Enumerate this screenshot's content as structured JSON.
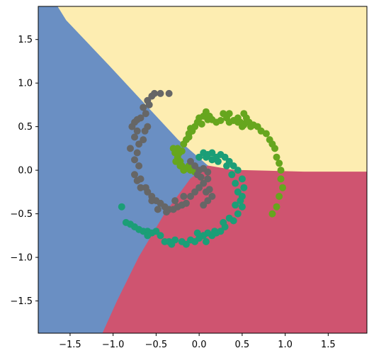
{
  "chart_data": {
    "type": "scatter",
    "title": "",
    "xlabel": "",
    "ylabel": "",
    "xlim": [
      -1.87,
      1.95
    ],
    "ylim": [
      -1.87,
      1.88
    ],
    "grid": false,
    "legend": "none",
    "x_ticks": [
      -1.5,
      -1.0,
      -0.5,
      0.0,
      0.5,
      1.0,
      1.5
    ],
    "y_ticks": [
      -1.5,
      -1.0,
      -0.5,
      0.0,
      0.5,
      1.0,
      1.5
    ],
    "x_tick_labels": [
      "−1.5",
      "−1.0",
      "−0.5",
      "0.0",
      "0.5",
      "1.0",
      "1.5"
    ],
    "y_tick_labels": [
      "−1.5",
      "−1.0",
      "−0.5",
      "0.0",
      "0.5",
      "1.0",
      "1.5"
    ],
    "regions": [
      {
        "class": "yellow",
        "color": "#FDEDB1",
        "polygon": [
          [
            -1.65,
            1.88
          ],
          [
            1.95,
            1.88
          ],
          [
            1.95,
            -0.02
          ],
          [
            1.22,
            -0.02
          ],
          [
            0.4,
            0.0
          ],
          [
            0.1,
            0.05
          ],
          [
            -0.25,
            0.35
          ],
          [
            -1.05,
            1.2
          ],
          [
            -1.55,
            1.72
          ]
        ]
      },
      {
        "class": "blue",
        "color": "#6A8FC3",
        "polygon": [
          [
            -1.87,
            1.88
          ],
          [
            -1.65,
            1.88
          ],
          [
            -1.55,
            1.72
          ],
          [
            -1.05,
            1.2
          ],
          [
            -0.25,
            0.35
          ],
          [
            0.1,
            0.05
          ],
          [
            -0.1,
            -0.1
          ],
          [
            -0.4,
            -0.5
          ],
          [
            -0.7,
            -1.0
          ],
          [
            -0.95,
            -1.5
          ],
          [
            -1.12,
            -1.87
          ],
          [
            -1.87,
            -1.87
          ]
        ]
      },
      {
        "class": "red",
        "color": "#CF5470",
        "polygon": [
          [
            0.1,
            0.05
          ],
          [
            0.4,
            0.0
          ],
          [
            1.22,
            -0.02
          ],
          [
            1.95,
            -0.02
          ],
          [
            1.95,
            -1.87
          ],
          [
            -1.12,
            -1.87
          ],
          [
            -0.95,
            -1.5
          ],
          [
            -0.7,
            -1.0
          ],
          [
            -0.4,
            -0.5
          ],
          [
            -0.1,
            -0.1
          ]
        ]
      }
    ],
    "series": [
      {
        "color": "#66A61E",
        "points": [
          [
            -0.3,
            0.25
          ],
          [
            -0.28,
            0.2
          ],
          [
            -0.25,
            0.15
          ],
          [
            -0.22,
            0.1
          ],
          [
            -0.2,
            0.05
          ],
          [
            -0.15,
            0.02
          ],
          [
            -0.1,
            0.0
          ],
          [
            -0.05,
            -0.02
          ],
          [
            -0.27,
            0.1
          ],
          [
            -0.23,
            0.2
          ],
          [
            -0.18,
            0.3
          ],
          [
            -0.15,
            0.35
          ],
          [
            -0.12,
            0.42
          ],
          [
            -0.1,
            0.48
          ],
          [
            -0.05,
            0.5
          ],
          [
            -0.02,
            0.55
          ],
          [
            0.0,
            0.6
          ],
          [
            0.05,
            0.62
          ],
          [
            0.08,
            0.67
          ],
          [
            0.12,
            0.62
          ],
          [
            0.15,
            0.58
          ],
          [
            0.2,
            0.55
          ],
          [
            0.25,
            0.57
          ],
          [
            0.28,
            0.65
          ],
          [
            0.32,
            0.6
          ],
          [
            0.35,
            0.55
          ],
          [
            0.4,
            0.57
          ],
          [
            0.45,
            0.6
          ],
          [
            0.48,
            0.55
          ],
          [
            0.5,
            0.5
          ],
          [
            0.52,
            0.65
          ],
          [
            0.55,
            0.6
          ],
          [
            0.58,
            0.55
          ],
          [
            0.6,
            0.5
          ],
          [
            0.63,
            0.52
          ],
          [
            0.68,
            0.5
          ],
          [
            0.72,
            0.45
          ],
          [
            0.78,
            0.42
          ],
          [
            0.82,
            0.35
          ],
          [
            0.85,
            0.3
          ],
          [
            0.88,
            0.25
          ],
          [
            0.9,
            0.15
          ],
          [
            0.93,
            0.08
          ],
          [
            0.95,
            0.0
          ],
          [
            0.95,
            -0.1
          ],
          [
            0.97,
            -0.2
          ],
          [
            0.93,
            -0.3
          ],
          [
            0.9,
            -0.42
          ],
          [
            0.85,
            -0.5
          ],
          [
            0.45,
            0.55
          ],
          [
            0.52,
            0.52
          ],
          [
            0.1,
            0.58
          ],
          [
            0.03,
            0.53
          ],
          [
            -0.08,
            0.45
          ],
          [
            -0.12,
            0.38
          ],
          [
            -0.2,
            0.22
          ],
          [
            -0.25,
            0.25
          ],
          [
            -0.22,
            0.05
          ],
          [
            -0.18,
            0.0
          ],
          [
            -0.12,
            0.05
          ],
          [
            0.35,
            0.65
          ],
          [
            0.55,
            0.55
          ]
        ]
      },
      {
        "color": "#1B9E77",
        "points": [
          [
            0.05,
            0.2
          ],
          [
            0.1,
            0.18
          ],
          [
            0.15,
            0.2
          ],
          [
            0.2,
            0.15
          ],
          [
            0.25,
            0.18
          ],
          [
            0.3,
            0.15
          ],
          [
            0.35,
            0.1
          ],
          [
            0.4,
            0.05
          ],
          [
            0.45,
            0.0
          ],
          [
            0.5,
            -0.1
          ],
          [
            0.52,
            -0.2
          ],
          [
            0.5,
            -0.3
          ],
          [
            0.5,
            -0.42
          ],
          [
            0.45,
            -0.5
          ],
          [
            0.4,
            -0.58
          ],
          [
            0.3,
            -0.65
          ],
          [
            0.25,
            -0.7
          ],
          [
            0.2,
            -0.72
          ],
          [
            0.15,
            -0.75
          ],
          [
            0.1,
            -0.72
          ],
          [
            0.05,
            -0.75
          ],
          [
            0.0,
            -0.78
          ],
          [
            -0.05,
            -0.82
          ],
          [
            -0.1,
            -0.8
          ],
          [
            -0.15,
            -0.85
          ],
          [
            -0.2,
            -0.82
          ],
          [
            -0.28,
            -0.8
          ],
          [
            -0.35,
            -0.82
          ],
          [
            -0.4,
            -0.82
          ],
          [
            -0.45,
            -0.75
          ],
          [
            -0.5,
            -0.7
          ],
          [
            -0.55,
            -0.72
          ],
          [
            -0.6,
            -0.7
          ],
          [
            -0.65,
            -0.7
          ],
          [
            -0.7,
            -0.68
          ],
          [
            -0.75,
            -0.65
          ],
          [
            -0.8,
            -0.62
          ],
          [
            -0.9,
            -0.42
          ],
          [
            -0.85,
            -0.6
          ],
          [
            0.08,
            0.15
          ],
          [
            0.22,
            0.1
          ],
          [
            0.32,
            0.05
          ],
          [
            0.38,
            -0.05
          ],
          [
            0.42,
            -0.15
          ],
          [
            0.45,
            -0.25
          ],
          [
            0.42,
            -0.4
          ],
          [
            0.35,
            -0.55
          ],
          [
            0.28,
            -0.6
          ],
          [
            0.18,
            -0.7
          ],
          [
            0.08,
            -0.82
          ],
          [
            -0.02,
            -0.72
          ],
          [
            -0.32,
            -0.85
          ],
          [
            -0.6,
            -0.75
          ],
          [
            0.0,
            0.15
          ],
          [
            0.15,
            0.12
          ],
          [
            0.48,
            -0.35
          ]
        ]
      },
      {
        "color": "#666666",
        "points": [
          [
            -0.55,
            0.85
          ],
          [
            -0.45,
            0.88
          ],
          [
            -0.6,
            0.8
          ],
          [
            -0.65,
            0.72
          ],
          [
            -0.62,
            0.65
          ],
          [
            -0.68,
            0.6
          ],
          [
            -0.75,
            0.55
          ],
          [
            -0.78,
            0.5
          ],
          [
            -0.72,
            0.45
          ],
          [
            -0.75,
            0.38
          ],
          [
            -0.7,
            0.3
          ],
          [
            -0.72,
            0.2
          ],
          [
            -0.75,
            0.12
          ],
          [
            -0.7,
            0.05
          ],
          [
            -0.75,
            -0.05
          ],
          [
            -0.72,
            -0.12
          ],
          [
            -0.68,
            -0.2
          ],
          [
            -0.6,
            -0.25
          ],
          [
            -0.55,
            -0.3
          ],
          [
            -0.5,
            -0.35
          ],
          [
            -0.45,
            -0.38
          ],
          [
            -0.4,
            -0.42
          ],
          [
            -0.35,
            -0.45
          ],
          [
            -0.3,
            -0.45
          ],
          [
            -0.25,
            -0.42
          ],
          [
            -0.2,
            -0.4
          ],
          [
            -0.15,
            -0.38
          ],
          [
            -0.1,
            -0.3
          ],
          [
            -0.05,
            -0.25
          ],
          [
            0.0,
            -0.2
          ],
          [
            0.05,
            -0.15
          ],
          [
            0.1,
            -0.1
          ],
          [
            0.1,
            -0.02
          ],
          [
            0.05,
            0.02
          ],
          [
            0.0,
            0.0
          ],
          [
            -0.05,
            0.05
          ],
          [
            -0.1,
            0.1
          ],
          [
            0.12,
            -0.22
          ],
          [
            0.15,
            -0.3
          ],
          [
            0.1,
            -0.35
          ],
          [
            0.05,
            -0.4
          ],
          [
            -0.62,
            -0.2
          ],
          [
            -0.55,
            -0.35
          ],
          [
            -0.48,
            -0.45
          ],
          [
            -0.38,
            -0.48
          ],
          [
            -0.65,
            0.35
          ],
          [
            -0.8,
            0.25
          ],
          [
            -0.58,
            0.75
          ],
          [
            -0.52,
            0.88
          ],
          [
            -0.35,
            0.88
          ],
          [
            0.02,
            -0.08
          ],
          [
            -0.02,
            -0.05
          ],
          [
            0.08,
            -0.25
          ],
          [
            -0.28,
            -0.35
          ],
          [
            -0.18,
            -0.3
          ],
          [
            -0.6,
            0.5
          ],
          [
            -0.72,
            0.58
          ],
          [
            -0.68,
            -0.1
          ],
          [
            -0.63,
            0.45
          ]
        ]
      }
    ]
  }
}
